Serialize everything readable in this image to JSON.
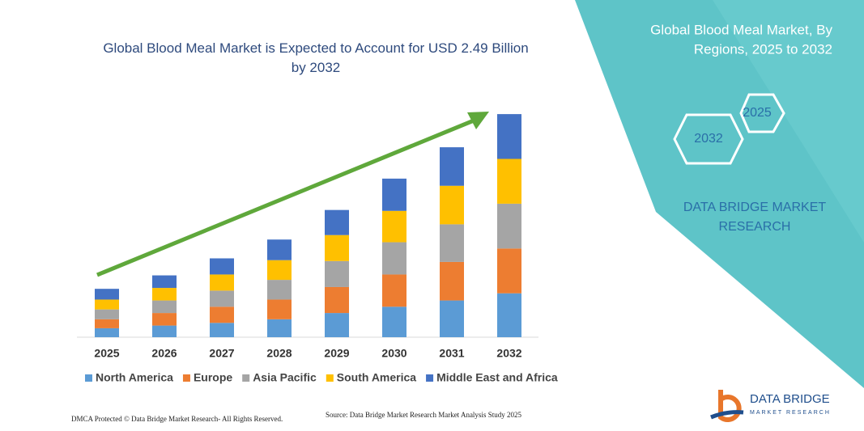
{
  "chart_data": {
    "type": "stacked-bar",
    "title": "Global Blood Meal Market is Expected to Account for USD 2.49 Billion by 2032",
    "categories": [
      "2025",
      "2026",
      "2027",
      "2028",
      "2029",
      "2030",
      "2031",
      "2032"
    ],
    "series": [
      {
        "name": "North America",
        "color": "#5b9bd5",
        "values": [
          0.1,
          0.13,
          0.16,
          0.2,
          0.27,
          0.34,
          0.41,
          0.49
        ]
      },
      {
        "name": "Europe",
        "color": "#ed7d31",
        "values": [
          0.1,
          0.14,
          0.18,
          0.22,
          0.29,
          0.36,
          0.43,
          0.5
        ]
      },
      {
        "name": "Asia Pacific",
        "color": "#a5a5a5",
        "values": [
          0.11,
          0.14,
          0.18,
          0.22,
          0.29,
          0.36,
          0.42,
          0.5
        ]
      },
      {
        "name": "South America",
        "color": "#ffc000",
        "values": [
          0.11,
          0.14,
          0.18,
          0.22,
          0.29,
          0.35,
          0.43,
          0.5
        ]
      },
      {
        "name": "Middle East and Africa",
        "color": "#4472c4",
        "values": [
          0.12,
          0.14,
          0.18,
          0.23,
          0.28,
          0.36,
          0.43,
          0.5
        ]
      }
    ],
    "legend": "bottom"
  },
  "panel": {
    "title_lines": [
      "Global Blood Meal Market, By",
      "Regions, 2025 to 2032"
    ],
    "hexagons": [
      "2025",
      "2032"
    ],
    "brand_lines": [
      "DATA BRIDGE MARKET",
      "RESEARCH"
    ]
  },
  "logo": {
    "name": "DATA BRIDGE",
    "tagline": "MARKET RESEARCH"
  },
  "footer": {
    "copyright": "DMCA Protected © Data Bridge Market Research- All Rights Reserved.",
    "source": "Source: Data Bridge Market Research Market Analysis Study 2025"
  }
}
